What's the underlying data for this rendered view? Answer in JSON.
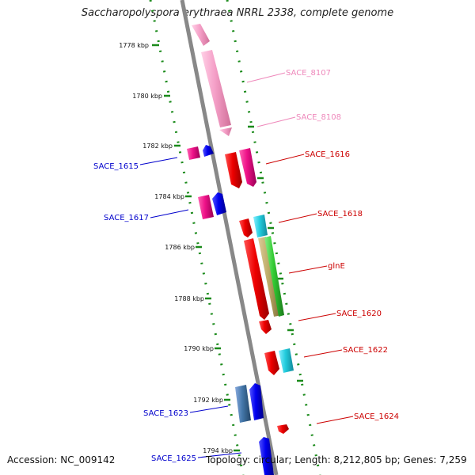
{
  "title": "Saccharopolyspora erythraea NRRL 2338, complete genome",
  "footer": {
    "accession": "Accession: NC_009142",
    "topology": "Topology: circular",
    "length": "Length: 8,212,805 bp",
    "genes": "Genes: 7,259",
    "separator": "; "
  },
  "ticks": [
    "1778 kbp",
    "1780 kbp",
    "1782 kbp",
    "1784 kbp",
    "1786 kbp",
    "1788 kbp",
    "1790 kbp",
    "1792 kbp",
    "1794 kbp"
  ],
  "gene_labels": {
    "sace_8107": "SACE_8107",
    "sace_8108": "SACE_8108",
    "sace_1616": "SACE_1616",
    "sace_1615": "SACE_1615",
    "sace_1617": "SACE_1617",
    "sace_1618": "SACE_1618",
    "glne": "glnE",
    "sace_1620": "SACE_1620",
    "sace_1622": "SACE_1622",
    "sace_1623": "SACE_1623",
    "sace_1624": "SACE_1624",
    "sace_1625": "SACE_1625"
  },
  "colors": {
    "backbone": "#888888",
    "ticks": "#1a8a1a",
    "forward_label": "#cc0000",
    "reverse_label": "#0000cc",
    "faded_label": "#ee88bb",
    "red": "#ee0000",
    "magenta": "#ee1188",
    "pink": "#f5a0c8",
    "blue": "#0000ee",
    "cyan": "#22ccdd",
    "green": "#33cc33",
    "khaki": "#bbaa66",
    "steel": "#4477aa"
  }
}
